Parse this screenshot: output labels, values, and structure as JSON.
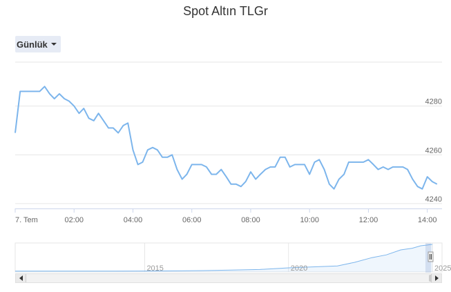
{
  "chart_data": {
    "type": "line",
    "title": "Spot Altın TLGr",
    "xlabel": "",
    "ylabel": "",
    "x_start_label": "7. Tem",
    "x_ticks": [
      {
        "label": "7. Tem",
        "value": 0
      },
      {
        "label": "02:00",
        "value": 2
      },
      {
        "label": "04:00",
        "value": 4
      },
      {
        "label": "06:00",
        "value": 6
      },
      {
        "label": "08:00",
        "value": 8
      },
      {
        "label": "10:00",
        "value": 10
      },
      {
        "label": "12:00",
        "value": 12
      },
      {
        "label": "14:00",
        "value": 14
      }
    ],
    "y_ticks": [
      4240,
      4260,
      4280
    ],
    "xlim": [
      0,
      14.5
    ],
    "ylim": [
      4238,
      4298
    ],
    "grid": true,
    "series": [
      {
        "color": "#7cb5ec",
        "x": [
          0,
          0.17,
          0.33,
          0.5,
          0.67,
          0.83,
          1,
          1.17,
          1.33,
          1.5,
          1.67,
          1.83,
          2,
          2.17,
          2.33,
          2.5,
          2.67,
          2.83,
          3,
          3.17,
          3.33,
          3.5,
          3.67,
          3.83,
          4,
          4.17,
          4.33,
          4.5,
          4.67,
          4.83,
          5,
          5.17,
          5.33,
          5.5,
          5.67,
          5.83,
          6,
          6.17,
          6.33,
          6.5,
          6.67,
          6.83,
          7,
          7.17,
          7.33,
          7.5,
          7.67,
          7.83,
          8,
          8.17,
          8.33,
          8.5,
          8.67,
          8.83,
          9,
          9.17,
          9.33,
          9.5,
          9.67,
          9.83,
          10,
          10.17,
          10.33,
          10.5,
          10.67,
          10.83,
          11,
          11.17,
          11.33,
          11.5,
          11.67,
          11.83,
          12,
          12.17,
          12.33,
          12.5,
          12.67,
          12.83,
          13,
          13.17,
          13.33,
          13.5,
          13.67,
          13.83,
          14,
          14.17,
          14.33
        ],
        "y": [
          4269,
          4286,
          4286,
          4286,
          4286,
          4286,
          4288,
          4285,
          4283,
          4285,
          4283,
          4282,
          4280,
          4277,
          4279,
          4275,
          4274,
          4277,
          4274,
          4271,
          4271,
          4269,
          4272,
          4273,
          4262,
          4256,
          4257,
          4262,
          4263,
          4262,
          4259,
          4259,
          4260,
          4254,
          4250,
          4252,
          4256,
          4256,
          4256,
          4255,
          4252,
          4252,
          4254,
          4251,
          4248,
          4248,
          4247,
          4249,
          4253,
          4250,
          4252,
          4254,
          4255,
          4255,
          4259,
          4259,
          4255,
          4256,
          4256,
          4256,
          4252,
          4257,
          4258,
          4254,
          4248,
          4246,
          4250,
          4252,
          4257,
          4257,
          4257,
          4257,
          4258,
          4256,
          4254,
          4255,
          4254,
          4255,
          4255,
          4255,
          4254,
          4250,
          4247,
          4246,
          4251,
          4249,
          4248
        ]
      }
    ]
  },
  "range_selector": {
    "label": "Günlük"
  },
  "navigator": {
    "year_labels": [
      "2015",
      "2020",
      "2025"
    ],
    "trend": [
      [
        2010.5,
        0.03
      ],
      [
        2012,
        0.03
      ],
      [
        2014,
        0.03
      ],
      [
        2015,
        0.035
      ],
      [
        2016,
        0.04
      ],
      [
        2017,
        0.05
      ],
      [
        2018,
        0.07
      ],
      [
        2019,
        0.09
      ],
      [
        2020,
        0.15
      ],
      [
        2021,
        0.19
      ],
      [
        2021.7,
        0.22
      ],
      [
        2022.3,
        0.35
      ],
      [
        2022.9,
        0.52
      ],
      [
        2023.4,
        0.62
      ],
      [
        2023.9,
        0.8
      ],
      [
        2024.3,
        0.86
      ],
      [
        2024.6,
        0.95
      ],
      [
        2025,
        1.0
      ]
    ]
  }
}
